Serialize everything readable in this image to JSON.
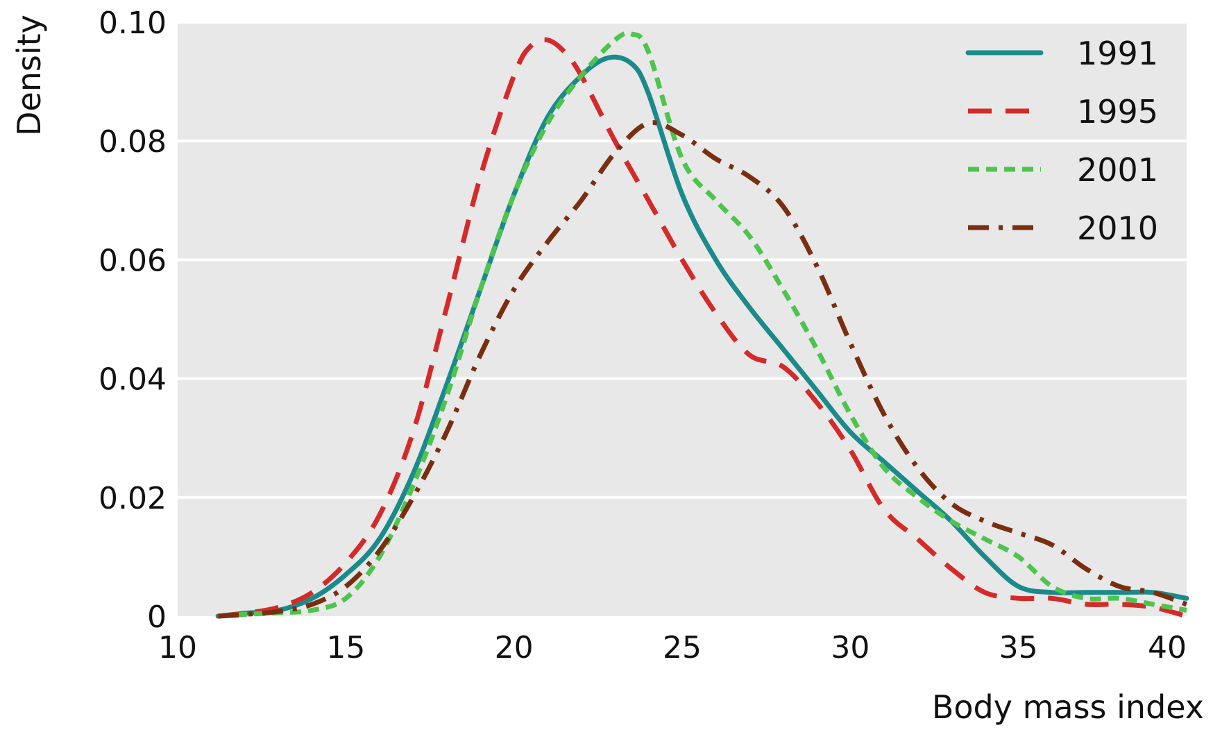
{
  "chart_data": {
    "type": "line",
    "title": "",
    "xlabel": "Body mass index",
    "ylabel": "Density",
    "xlim": [
      10,
      40
    ],
    "ylim": [
      0,
      0.1
    ],
    "xticks": [
      10,
      15,
      20,
      25,
      30,
      35,
      40
    ],
    "xtick_labels": [
      "10",
      "15",
      "20",
      "25",
      "30",
      "35",
      "40"
    ],
    "yticks": [
      0,
      0.02,
      0.04,
      0.06,
      0.08,
      0.1
    ],
    "ytick_labels": [
      "0",
      "0.02",
      "0.04",
      "0.06",
      "0.08",
      "0.10"
    ],
    "grid": "horizontal",
    "background": "#e8e8e8",
    "legend_position": "top-right",
    "series": [
      {
        "name": "1991",
        "color": "#1a8a8a",
        "style": "solid",
        "x": [
          11.2,
          12,
          13,
          14,
          15,
          16,
          17,
          18,
          19,
          20,
          21,
          22,
          22.8,
          23.5,
          24,
          25,
          26,
          27,
          28,
          29,
          30,
          31,
          32,
          33,
          34,
          35,
          36,
          37,
          38,
          39,
          40
        ],
        "y": [
          0,
          0.0005,
          0.001,
          0.003,
          0.007,
          0.013,
          0.024,
          0.039,
          0.055,
          0.071,
          0.084,
          0.091,
          0.094,
          0.093,
          0.088,
          0.071,
          0.06,
          0.052,
          0.045,
          0.038,
          0.031,
          0.026,
          0.021,
          0.016,
          0.01,
          0.005,
          0.004,
          0.004,
          0.004,
          0.004,
          0.003
        ]
      },
      {
        "name": "1995",
        "color": "#d42a2a",
        "style": "dashed",
        "x": [
          11.2,
          12,
          13,
          14,
          15,
          16,
          17,
          18,
          19,
          20,
          20.5,
          21,
          21.5,
          22,
          23,
          24,
          25,
          26,
          27,
          28,
          29,
          30,
          31,
          32,
          33,
          34,
          35,
          36,
          37,
          38,
          39,
          40
        ],
        "y": [
          0,
          0.0005,
          0.0015,
          0.004,
          0.009,
          0.017,
          0.031,
          0.052,
          0.074,
          0.091,
          0.096,
          0.097,
          0.095,
          0.091,
          0.08,
          0.07,
          0.06,
          0.051,
          0.044,
          0.042,
          0.036,
          0.028,
          0.018,
          0.013,
          0.008,
          0.004,
          0.003,
          0.003,
          0.002,
          0.002,
          0.0015,
          0
        ]
      },
      {
        "name": "2001",
        "color": "#4ec44e",
        "style": "dotted",
        "x": [
          11.2,
          12,
          13,
          14,
          15,
          16,
          17,
          18,
          19,
          20,
          21,
          22,
          23,
          23.5,
          24,
          25,
          26,
          27,
          28,
          29,
          30,
          31,
          32,
          33,
          34,
          35,
          36,
          37,
          38,
          39,
          40
        ],
        "y": [
          0,
          0.0003,
          0.0006,
          0.001,
          0.003,
          0.01,
          0.022,
          0.037,
          0.055,
          0.071,
          0.083,
          0.091,
          0.097,
          0.098,
          0.095,
          0.077,
          0.07,
          0.064,
          0.055,
          0.045,
          0.034,
          0.025,
          0.02,
          0.016,
          0.013,
          0.01,
          0.005,
          0.003,
          0.003,
          0.002,
          0.001
        ]
      },
      {
        "name": "2010",
        "color": "#7a2e10",
        "style": "dashdot",
        "x": [
          11.2,
          12,
          13,
          14,
          15,
          16,
          17,
          18,
          19,
          20,
          21,
          22,
          23,
          24,
          25,
          26,
          27,
          28,
          29,
          30,
          31,
          32,
          33,
          34,
          35,
          36,
          37,
          38,
          39,
          40
        ],
        "y": [
          0,
          0.0003,
          0.0008,
          0.002,
          0.005,
          0.011,
          0.02,
          0.031,
          0.044,
          0.055,
          0.063,
          0.07,
          0.078,
          0.083,
          0.081,
          0.077,
          0.074,
          0.069,
          0.059,
          0.046,
          0.034,
          0.025,
          0.019,
          0.016,
          0.014,
          0.012,
          0.008,
          0.005,
          0.004,
          0.002
        ]
      }
    ]
  }
}
